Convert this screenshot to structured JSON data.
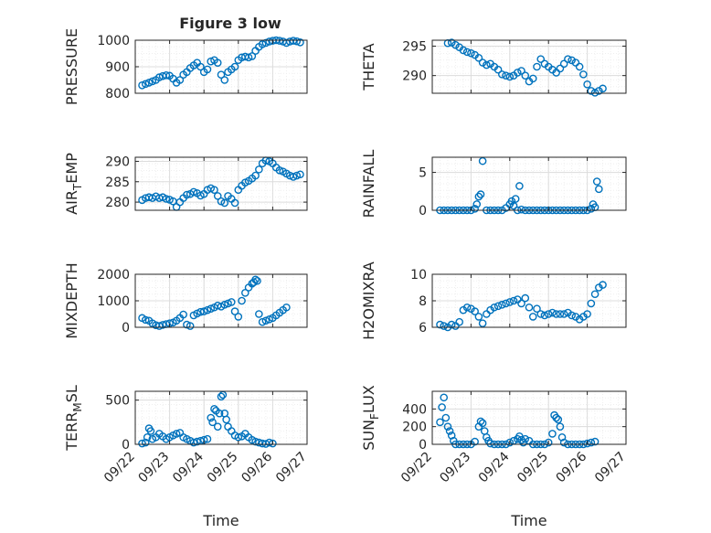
{
  "figure": {
    "title": "Figure 3 low",
    "colors": {
      "marker": "#0072BD",
      "axis": "#262626",
      "grid": "#dcdcdc",
      "minor_grid": "#efefef"
    },
    "grid": true,
    "marker": "open-circle"
  },
  "chart_data": [
    {
      "type": "scatter",
      "ylabel": "PRESSURE",
      "xlabel": "",
      "xlim": [
        0,
        5
      ],
      "ylim": [
        800,
        1000
      ],
      "xticks": [],
      "yticks": [
        "800",
        "900",
        "1000"
      ],
      "ytick_values": [
        800,
        900,
        1000
      ],
      "x": [
        0.2,
        0.3,
        0.4,
        0.5,
        0.6,
        0.7,
        0.8,
        0.9,
        1.0,
        1.1,
        1.2,
        1.3,
        1.4,
        1.5,
        1.6,
        1.7,
        1.8,
        1.9,
        2.0,
        2.1,
        2.2,
        2.3,
        2.4,
        2.5,
        2.6,
        2.7,
        2.8,
        2.9,
        3.0,
        3.1,
        3.2,
        3.3,
        3.4,
        3.5,
        3.6,
        3.7,
        3.8,
        3.9,
        4.0,
        4.1,
        4.2,
        4.3,
        4.4,
        4.5,
        4.6,
        4.7,
        4.8
      ],
      "y": [
        830,
        835,
        840,
        845,
        850,
        860,
        865,
        868,
        866,
        855,
        840,
        850,
        870,
        880,
        895,
        905,
        915,
        900,
        880,
        890,
        920,
        925,
        915,
        870,
        850,
        880,
        890,
        900,
        925,
        935,
        938,
        935,
        940,
        960,
        975,
        985,
        990,
        995,
        998,
        1000,
        998,
        995,
        990,
        995,
        998,
        996,
        992
      ]
    },
    {
      "type": "scatter",
      "ylabel": "THETA",
      "xlabel": "",
      "xlim": [
        0,
        5
      ],
      "ylim": [
        287,
        296
      ],
      "xticks": [],
      "yticks": [
        "290",
        "295"
      ],
      "ytick_values": [
        290,
        295
      ],
      "x": [
        0.4,
        0.5,
        0.6,
        0.7,
        0.8,
        0.9,
        1.0,
        1.1,
        1.2,
        1.3,
        1.4,
        1.5,
        1.6,
        1.7,
        1.8,
        1.9,
        2.0,
        2.1,
        2.2,
        2.3,
        2.4,
        2.5,
        2.6,
        2.7,
        2.8,
        2.9,
        3.0,
        3.1,
        3.2,
        3.3,
        3.4,
        3.5,
        3.6,
        3.7,
        3.8,
        3.9,
        4.0,
        4.1,
        4.2,
        4.3,
        4.4
      ],
      "y": [
        295.5,
        295.6,
        295.2,
        294.8,
        294.3,
        294.0,
        293.8,
        293.5,
        293.0,
        292.2,
        291.8,
        292.0,
        291.5,
        291.0,
        290.2,
        290.0,
        289.8,
        290.0,
        290.5,
        290.8,
        290.0,
        289.0,
        289.5,
        291.5,
        292.8,
        292.0,
        291.5,
        291.0,
        290.5,
        291.2,
        292.0,
        292.8,
        292.6,
        292.2,
        291.5,
        290.2,
        288.5,
        287.4,
        287.1,
        287.4,
        287.8
      ]
    },
    {
      "type": "scatter",
      "ylabel": "AIR_TEMP",
      "xlabel": "",
      "xlim": [
        0,
        5
      ],
      "ylim": [
        278,
        291
      ],
      "xticks": [],
      "yticks": [
        "280",
        "285",
        "290"
      ],
      "ytick_values": [
        280,
        285,
        290
      ],
      "x": [
        0.2,
        0.3,
        0.4,
        0.5,
        0.6,
        0.7,
        0.8,
        0.9,
        1.0,
        1.1,
        1.2,
        1.3,
        1.4,
        1.5,
        1.6,
        1.7,
        1.8,
        1.9,
        2.0,
        2.1,
        2.2,
        2.3,
        2.4,
        2.5,
        2.6,
        2.7,
        2.8,
        2.9,
        3.0,
        3.1,
        3.2,
        3.3,
        3.4,
        3.5,
        3.6,
        3.7,
        3.8,
        3.9,
        4.0,
        4.1,
        4.2,
        4.3,
        4.4,
        4.5,
        4.6,
        4.7,
        4.8
      ],
      "y": [
        280.5,
        281.0,
        281.2,
        281.0,
        281.4,
        281.0,
        281.2,
        280.8,
        280.6,
        280.2,
        278.8,
        280.0,
        281.0,
        281.8,
        282.0,
        282.5,
        282.2,
        281.6,
        282.0,
        283.0,
        283.4,
        283.0,
        281.5,
        280.2,
        279.8,
        281.5,
        280.8,
        279.8,
        283.0,
        284.0,
        284.8,
        285.2,
        285.8,
        286.5,
        288.0,
        289.5,
        290.2,
        290.0,
        289.5,
        288.5,
        287.8,
        287.5,
        287.0,
        286.5,
        286.2,
        286.5,
        286.8
      ]
    },
    {
      "type": "scatter",
      "ylabel": "RAINFALL",
      "xlabel": "",
      "xlim": [
        0,
        5
      ],
      "ylim": [
        0,
        7
      ],
      "xticks": [],
      "yticks": [
        "0",
        "5"
      ],
      "ytick_values": [
        0,
        5
      ],
      "x": [
        0.2,
        0.3,
        0.4,
        0.5,
        0.6,
        0.7,
        0.8,
        0.9,
        1.0,
        1.1,
        1.15,
        1.2,
        1.25,
        1.3,
        1.4,
        1.5,
        1.6,
        1.7,
        1.8,
        1.9,
        2.0,
        2.05,
        2.1,
        2.15,
        2.2,
        2.25,
        2.3,
        2.4,
        2.5,
        2.6,
        2.7,
        2.8,
        2.9,
        3.0,
        3.1,
        3.2,
        3.3,
        3.4,
        3.5,
        3.6,
        3.7,
        3.8,
        3.9,
        4.0,
        4.1,
        4.15,
        4.2,
        4.25,
        4.3
      ],
      "y": [
        0,
        0,
        0,
        0,
        0,
        0,
        0,
        0,
        0,
        0.2,
        0.8,
        1.8,
        2.1,
        6.5,
        0,
        0,
        0,
        0,
        0,
        0.3,
        0.8,
        1.2,
        0.6,
        1.5,
        0,
        3.2,
        0.1,
        0,
        0,
        0,
        0,
        0,
        0,
        0,
        0,
        0,
        0,
        0,
        0,
        0,
        0,
        0,
        0,
        0,
        0.2,
        0.8,
        0.4,
        3.8,
        2.8
      ]
    },
    {
      "type": "scatter",
      "ylabel": "MIXDEPTH",
      "xlabel": "",
      "xlim": [
        0,
        5
      ],
      "ylim": [
        0,
        2000
      ],
      "xticks": [],
      "yticks": [
        "0",
        "1000",
        "2000"
      ],
      "ytick_values": [
        0,
        1000,
        2000
      ],
      "x": [
        0.2,
        0.3,
        0.4,
        0.5,
        0.6,
        0.7,
        0.8,
        0.9,
        1.0,
        1.1,
        1.2,
        1.3,
        1.4,
        1.5,
        1.6,
        1.7,
        1.8,
        1.9,
        2.0,
        2.1,
        2.2,
        2.3,
        2.4,
        2.5,
        2.6,
        2.7,
        2.8,
        2.9,
        3.0,
        3.1,
        3.2,
        3.3,
        3.4,
        3.45,
        3.5,
        3.55,
        3.6,
        3.7,
        3.8,
        3.9,
        4.0,
        4.1,
        4.2,
        4.3,
        4.4
      ],
      "y": [
        350,
        280,
        250,
        150,
        80,
        50,
        90,
        120,
        150,
        180,
        250,
        350,
        480,
        100,
        50,
        450,
        520,
        580,
        600,
        650,
        700,
        750,
        820,
        780,
        850,
        900,
        950,
        600,
        400,
        1000,
        1300,
        1500,
        1650,
        1700,
        1800,
        1750,
        500,
        200,
        250,
        300,
        350,
        450,
        550,
        650,
        750
      ]
    },
    {
      "type": "scatter",
      "ylabel": "H2OMIXRA",
      "xlabel": "",
      "xlim": [
        0,
        5
      ],
      "ylim": [
        6,
        10
      ],
      "xticks": [],
      "yticks": [
        "6",
        "8",
        "10"
      ],
      "ytick_values": [
        6,
        8,
        10
      ],
      "x": [
        0.2,
        0.3,
        0.4,
        0.5,
        0.6,
        0.7,
        0.8,
        0.9,
        1.0,
        1.1,
        1.2,
        1.3,
        1.4,
        1.5,
        1.6,
        1.7,
        1.8,
        1.9,
        2.0,
        2.1,
        2.2,
        2.3,
        2.4,
        2.5,
        2.6,
        2.7,
        2.8,
        2.9,
        3.0,
        3.1,
        3.2,
        3.3,
        3.4,
        3.5,
        3.6,
        3.7,
        3.8,
        3.9,
        4.0,
        4.1,
        4.2,
        4.3,
        4.4
      ],
      "y": [
        6.2,
        6.1,
        6.0,
        6.2,
        6.1,
        6.4,
        7.3,
        7.5,
        7.4,
        7.2,
        6.8,
        6.3,
        7.0,
        7.3,
        7.5,
        7.6,
        7.7,
        7.8,
        7.9,
        8.0,
        8.1,
        7.8,
        8.2,
        7.5,
        6.8,
        7.4,
        7.0,
        6.9,
        7.0,
        7.1,
        7.0,
        7.0,
        7.0,
        7.1,
        6.9,
        6.8,
        6.6,
        6.8,
        7.0,
        7.8,
        8.5,
        9.0,
        9.2
      ]
    },
    {
      "type": "scatter",
      "ylabel": "TERR_MSL",
      "xlabel": "Time",
      "xlim": [
        0,
        5
      ],
      "ylim": [
        0,
        600
      ],
      "xticks": [
        "09/22",
        "09/23",
        "09/24",
        "09/25",
        "09/26",
        "09/27"
      ],
      "xtick_values": [
        0,
        1,
        2,
        3,
        4,
        5
      ],
      "yticks": [
        "0",
        "500"
      ],
      "ytick_values": [
        0,
        500
      ],
      "x": [
        0.2,
        0.3,
        0.35,
        0.4,
        0.45,
        0.5,
        0.6,
        0.7,
        0.8,
        0.9,
        1.0,
        1.1,
        1.2,
        1.3,
        1.4,
        1.5,
        1.6,
        1.7,
        1.8,
        1.9,
        2.0,
        2.1,
        2.2,
        2.25,
        2.3,
        2.35,
        2.4,
        2.45,
        2.5,
        2.55,
        2.6,
        2.65,
        2.7,
        2.8,
        2.9,
        3.0,
        3.1,
        3.2,
        3.3,
        3.4,
        3.5,
        3.6,
        3.7,
        3.8,
        3.9,
        4.0
      ],
      "y": [
        10,
        20,
        80,
        180,
        150,
        60,
        80,
        120,
        90,
        60,
        80,
        100,
        120,
        130,
        80,
        60,
        40,
        20,
        30,
        40,
        50,
        60,
        300,
        250,
        400,
        380,
        200,
        350,
        540,
        560,
        350,
        280,
        200,
        150,
        100,
        80,
        90,
        120,
        80,
        50,
        30,
        20,
        10,
        5,
        20,
        10
      ]
    },
    {
      "type": "scatter",
      "ylabel": "SUN_FLUX",
      "xlabel": "Time",
      "xlim": [
        0,
        5
      ],
      "ylim": [
        0,
        600
      ],
      "xticks": [
        "09/22",
        "09/23",
        "09/24",
        "09/25",
        "09/26",
        "09/27"
      ],
      "xtick_values": [
        0,
        1,
        2,
        3,
        4,
        5
      ],
      "yticks": [
        "0",
        "200",
        "400"
      ],
      "ytick_values": [
        0,
        200,
        400
      ],
      "x": [
        0.2,
        0.25,
        0.3,
        0.35,
        0.4,
        0.45,
        0.5,
        0.55,
        0.6,
        0.7,
        0.8,
        0.9,
        1.0,
        1.1,
        1.2,
        1.25,
        1.3,
        1.35,
        1.4,
        1.45,
        1.5,
        1.6,
        1.7,
        1.8,
        1.9,
        2.0,
        2.1,
        2.2,
        2.25,
        2.3,
        2.35,
        2.4,
        2.5,
        2.6,
        2.7,
        2.8,
        2.9,
        3.0,
        3.1,
        3.15,
        3.2,
        3.25,
        3.3,
        3.35,
        3.4,
        3.5,
        3.6,
        3.7,
        3.8,
        3.9,
        4.0,
        4.1,
        4.2
      ],
      "y": [
        250,
        420,
        530,
        300,
        200,
        150,
        100,
        40,
        0,
        0,
        0,
        0,
        0,
        30,
        200,
        260,
        240,
        150,
        80,
        40,
        10,
        0,
        0,
        0,
        0,
        20,
        40,
        60,
        90,
        50,
        20,
        60,
        40,
        0,
        0,
        0,
        0,
        20,
        120,
        330,
        300,
        280,
        200,
        80,
        20,
        0,
        0,
        0,
        0,
        0,
        10,
        20,
        30
      ]
    }
  ]
}
